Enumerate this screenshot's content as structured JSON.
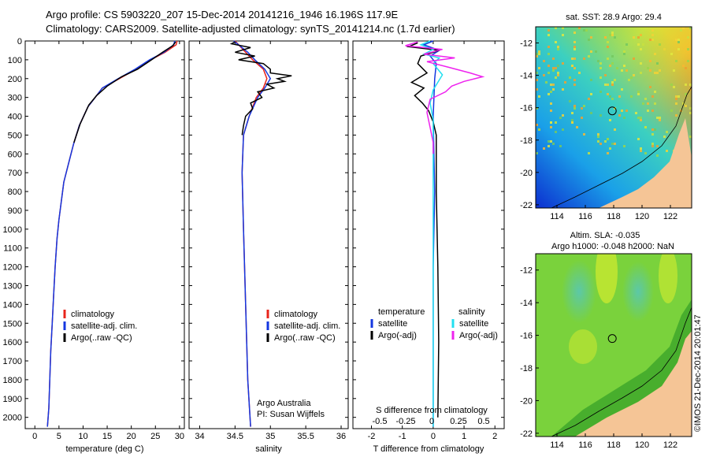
{
  "header": {
    "line1": "Argo profile: CS 5903220_207 15-Dec-2014 20141216_1946 16.196S 117.9E",
    "line2": "Climatology: CARS2009. Satellite-adjusted climatology: synTS_20141214.nc (1.7d earlier)"
  },
  "colors": {
    "climatology": "#e8241b",
    "satellite": "#1437e0",
    "argo": "#000000",
    "sal_satellite": "#22e0f0",
    "sal_argo": "#ee22ee",
    "land": "#f5c596"
  },
  "chart_data": [
    {
      "type": "line",
      "name": "temperature-profile",
      "xlabel": "temperature (deg C)",
      "ylabel": "depth (m)",
      "xlim": [
        -2,
        31
      ],
      "ylim": [
        2060,
        0
      ],
      "xticks": [
        0,
        5,
        10,
        15,
        20,
        25,
        30
      ],
      "yticks": [
        0,
        100,
        200,
        300,
        400,
        500,
        600,
        700,
        800,
        900,
        1000,
        1100,
        1200,
        1300,
        1400,
        1500,
        1600,
        1700,
        1800,
        1900,
        2000
      ],
      "legend": [
        "climatology",
        "satellite-adj. clim.",
        "Argo(..raw -QC)"
      ],
      "series": [
        {
          "name": "climatology",
          "color": "#e8241b",
          "points": [
            [
              29.5,
              0
            ],
            [
              29.3,
              20
            ],
            [
              27,
              60
            ],
            [
              24,
              100
            ],
            [
              21,
              150
            ],
            [
              17.5,
              200
            ],
            [
              14,
              250
            ],
            [
              12.5,
              300
            ],
            [
              11,
              350
            ],
            [
              9.2,
              450
            ],
            [
              8,
              550
            ],
            [
              7,
              650
            ],
            [
              6,
              750
            ],
            [
              5.5,
              850
            ],
            [
              5,
              950
            ],
            [
              4.6,
              1050
            ],
            [
              4.2,
              1200
            ],
            [
              3.9,
              1350
            ],
            [
              3.6,
              1500
            ],
            [
              3.3,
              1650
            ],
            [
              3.1,
              1800
            ],
            [
              2.9,
              1950
            ],
            [
              2.6,
              2050
            ]
          ]
        },
        {
          "name": "satellite-adj. clim.",
          "color": "#1437e0",
          "points": [
            [
              29.0,
              0
            ],
            [
              28.8,
              20
            ],
            [
              26.8,
              60
            ],
            [
              23.8,
              100
            ],
            [
              20.8,
              150
            ],
            [
              17.3,
              200
            ],
            [
              14,
              250
            ],
            [
              12.5,
              300
            ],
            [
              11,
              350
            ],
            [
              9.2,
              450
            ],
            [
              8,
              550
            ],
            [
              7,
              650
            ],
            [
              6,
              750
            ],
            [
              5.5,
              850
            ],
            [
              5,
              950
            ],
            [
              4.6,
              1050
            ],
            [
              4.2,
              1200
            ],
            [
              3.9,
              1350
            ],
            [
              3.6,
              1500
            ],
            [
              3.3,
              1650
            ],
            [
              3.1,
              1800
            ],
            [
              2.9,
              1950
            ],
            [
              2.6,
              2050
            ]
          ]
        },
        {
          "name": "Argo(..raw -QC)",
          "color": "#000000",
          "points": [
            [
              29.2,
              5
            ],
            [
              28.6,
              25
            ],
            [
              26.5,
              60
            ],
            [
              24.2,
              100
            ],
            [
              21.3,
              150
            ],
            [
              18,
              190
            ],
            [
              15,
              240
            ],
            [
              12.8,
              290
            ],
            [
              11.2,
              340
            ],
            [
              9.4,
              440
            ],
            [
              8.1,
              540
            ]
          ]
        }
      ],
      "annotations": []
    },
    {
      "type": "line",
      "name": "salinity-profile",
      "xlabel": "salinity",
      "ylabel": "depth (m)",
      "xlim": [
        33.85,
        36.1
      ],
      "ylim": [
        2060,
        0
      ],
      "xticks": [
        34,
        34.5,
        35,
        35.5,
        36
      ],
      "legend": [
        "climatology",
        "satellite-adj. clim.",
        "Argo(..raw -QC)"
      ],
      "series": [
        {
          "name": "climatology",
          "color": "#e8241b",
          "points": [
            [
              34.5,
              0
            ],
            [
              34.6,
              40
            ],
            [
              34.75,
              100
            ],
            [
              34.9,
              150
            ],
            [
              34.95,
              200
            ],
            [
              34.9,
              250
            ],
            [
              34.8,
              300
            ],
            [
              34.7,
              400
            ],
            [
              34.62,
              500
            ],
            [
              34.6,
              700
            ],
            [
              34.62,
              1000
            ],
            [
              34.65,
              1400
            ],
            [
              34.68,
              1800
            ],
            [
              34.72,
              2050
            ]
          ]
        },
        {
          "name": "satellite-adj. clim.",
          "color": "#1437e0",
          "points": [
            [
              34.48,
              0
            ],
            [
              34.55,
              20
            ],
            [
              34.68,
              60
            ],
            [
              34.78,
              100
            ],
            [
              34.92,
              150
            ],
            [
              35.0,
              200
            ],
            [
              34.92,
              250
            ],
            [
              34.82,
              300
            ],
            [
              34.7,
              400
            ],
            [
              34.62,
              500
            ],
            [
              34.6,
              700
            ],
            [
              34.62,
              1000
            ],
            [
              34.65,
              1400
            ],
            [
              34.68,
              1800
            ],
            [
              34.72,
              2050
            ]
          ]
        },
        {
          "name": "Argo(..raw -QC)",
          "color": "#000000",
          "points": [
            [
              34.5,
              5
            ],
            [
              34.45,
              15
            ],
            [
              34.72,
              35
            ],
            [
              34.5,
              60
            ],
            [
              34.78,
              80
            ],
            [
              34.55,
              100
            ],
            [
              34.9,
              120
            ],
            [
              35.0,
              150
            ],
            [
              35.0,
              170
            ],
            [
              35.3,
              185
            ],
            [
              35.1,
              200
            ],
            [
              35.2,
              215
            ],
            [
              34.95,
              230
            ],
            [
              35.05,
              250
            ],
            [
              34.82,
              270
            ],
            [
              34.88,
              300
            ],
            [
              34.72,
              330
            ],
            [
              34.75,
              360
            ],
            [
              34.65,
              400
            ],
            [
              34.62,
              450
            ],
            [
              34.6,
              500
            ]
          ]
        }
      ],
      "annotations": [
        "Argo Australia",
        "PI: Susan Wijffels"
      ]
    },
    {
      "type": "line",
      "name": "difference-profile",
      "xlabel": "T difference from climatology",
      "xlabel2": "S difference from climatology",
      "ylabel": "depth (m)",
      "xlim": [
        -2.6,
        2.3
      ],
      "ylim": [
        2060,
        0
      ],
      "xticks": [
        -2,
        -1,
        0,
        1,
        2
      ],
      "xticks_s": [
        "-0.5",
        "-0.25",
        "0",
        "0.25",
        "0.5"
      ],
      "legend": [
        "satellite",
        "Argo(-adj)",
        "satellite",
        "Argo(-adj)"
      ],
      "legend_heads": [
        "temperature",
        "salinity"
      ],
      "series": [
        {
          "name": "temperature satellite",
          "color": "#1437e0",
          "points": [
            [
              0.0,
              0
            ],
            [
              -0.3,
              20
            ],
            [
              0.2,
              50
            ],
            [
              -0.1,
              80
            ],
            [
              0.1,
              120
            ],
            [
              0.05,
              200
            ],
            [
              0.0,
              400
            ],
            [
              0.05,
              800
            ],
            [
              0.0,
              1200
            ],
            [
              0.0,
              1600
            ],
            [
              0.0,
              2050
            ]
          ]
        },
        {
          "name": "temperature Argo(-adj)",
          "color": "#000000",
          "points": [
            [
              -0.5,
              10
            ],
            [
              -0.8,
              30
            ],
            [
              0.2,
              50
            ],
            [
              -0.4,
              80
            ],
            [
              -0.5,
              120
            ],
            [
              -0.2,
              170
            ],
            [
              -0.7,
              220
            ],
            [
              -0.3,
              250
            ],
            [
              -0.6,
              290
            ],
            [
              -0.35,
              330
            ],
            [
              -0.15,
              370
            ],
            [
              0.0,
              430
            ],
            [
              0.1,
              500
            ],
            [
              0.1,
              800
            ],
            [
              0.15,
              1200
            ],
            [
              0.18,
              1600
            ],
            [
              0.15,
              2000
            ]
          ]
        },
        {
          "name": "salinity satellite",
          "color": "#22e0f0",
          "points": [
            [
              -0.1,
              0
            ],
            [
              -0.4,
              20
            ],
            [
              0.0,
              45
            ],
            [
              -0.3,
              70
            ],
            [
              0.2,
              90
            ],
            [
              0.0,
              120
            ],
            [
              0.3,
              180
            ],
            [
              0.0,
              260
            ],
            [
              -0.1,
              330
            ],
            [
              0.0,
              420
            ],
            [
              0.0,
              600
            ],
            [
              0.0,
              1000
            ],
            [
              0.0,
              1500
            ],
            [
              0.0,
              2050
            ]
          ]
        },
        {
          "name": "salinity Argo(-adj)",
          "color": "#ee22ee",
          "points": [
            [
              -0.5,
              5
            ],
            [
              -0.9,
              25
            ],
            [
              0.3,
              45
            ],
            [
              -0.3,
              70
            ],
            [
              0.7,
              90
            ],
            [
              -0.2,
              110
            ],
            [
              0.5,
              140
            ],
            [
              1.2,
              170
            ],
            [
              1.6,
              190
            ],
            [
              1.0,
              215
            ],
            [
              0.6,
              240
            ],
            [
              0.4,
              270
            ],
            [
              -0.1,
              310
            ],
            [
              -0.2,
              380
            ],
            [
              -0.1,
              460
            ],
            [
              0.0,
              540
            ],
            [
              0.0,
              600
            ]
          ]
        }
      ]
    }
  ],
  "maps": [
    {
      "name": "sst-map",
      "title": "sat. SST: 28.9 Argo: 29.4",
      "xticks": [
        "114",
        "116",
        "118",
        "120",
        "122"
      ],
      "yticks": [
        "-12",
        "-14",
        "-16",
        "-18",
        "-20",
        "-22"
      ],
      "argo_lon": 117.9,
      "argo_lat": -16.196
    },
    {
      "name": "sla-map",
      "title1": "Altim. SLA: -0.035",
      "title2": "Argo h1000: -0.048 h2000: NaN",
      "xticks": [
        "114",
        "116",
        "118",
        "120",
        "122"
      ],
      "yticks": [
        "-12",
        "-14",
        "-16",
        "-18",
        "-20",
        "-22"
      ],
      "argo_lon": 117.9,
      "argo_lat": -16.196
    }
  ],
  "stamp": "©IMOS 21-Dec-2014 20:01:47"
}
